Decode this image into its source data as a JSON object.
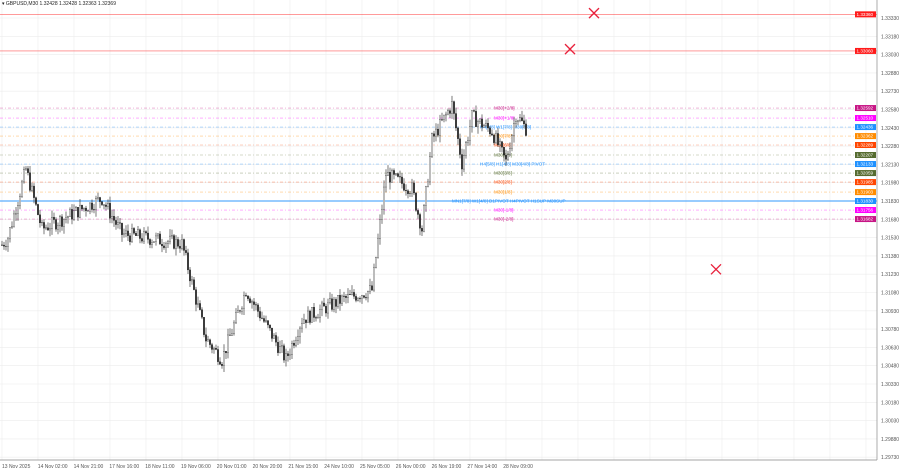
{
  "header": {
    "symbol": "GBPUSD,M30",
    "ohlc": "1.32428 1.32428 1.32363 1.32369"
  },
  "price_axis": {
    "ticks": [
      "1.33330",
      "1.33180",
      "1.33030",
      "1.32880",
      "1.32730",
      "1.32580",
      "1.32430",
      "1.32280",
      "1.32130",
      "1.31980",
      "1.31830",
      "1.31680",
      "1.31530",
      "1.31380",
      "1.31230",
      "1.31080",
      "1.30930",
      "1.30780",
      "1.30630",
      "1.30480",
      "1.30330",
      "1.30180",
      "1.30030",
      "1.29880",
      "1.29730"
    ],
    "max": 1.3333,
    "step": 0.0015
  },
  "time_axis": {
    "labels": [
      "13 Nov 2025",
      "14 Nov 02:00",
      "14 Nov 21:00",
      "17 Nov 16:00",
      "18 Nov 11:00",
      "19 Nov 06:00",
      "20 Nov 01:00",
      "20 Nov 20:00",
      "21 Nov 15:00",
      "24 Nov 10:00",
      "25 Nov 05:00",
      "26 Nov 00:00",
      "26 Nov 19:00",
      "27 Nov 14:00",
      "28 Nov 09:00"
    ]
  },
  "red_lines": [
    {
      "price": 1.3336,
      "tag": "1.33360",
      "color": "#ff1a1a"
    },
    {
      "price": 1.3306,
      "tag": "1.33060",
      "color": "#ff1a1a"
    }
  ],
  "levels": [
    {
      "label": "M30[+2/8]",
      "price": 1.32592,
      "color": "#c71585"
    },
    {
      "label": "M30[+1/8]",
      "price": 1.3251,
      "color": "#ff00ff"
    },
    {
      "label": "H4[8/8] W1[7/8] M30[8/8]",
      "price": 1.32436,
      "color": "#1e90ff"
    },
    {
      "label": "M30[7/8]",
      "price": 1.32362,
      "color": "#ff8c00"
    },
    {
      "label": "M30[6/8]",
      "price": 1.32289,
      "color": "#ff4500"
    },
    {
      "label": "M30[5/8]",
      "price": 1.32207,
      "color": "#556b2f"
    },
    {
      "label": "H4[5/8] H1[4/8] M30[4/8] PIVOT",
      "price": 1.32133,
      "color": "#1e90ff"
    },
    {
      "label": "M30[3/8]",
      "price": 1.32059,
      "color": "#556b2f"
    },
    {
      "label": "M30[2/8]",
      "price": 1.31985,
      "color": "#ff4500"
    },
    {
      "label": "M30[1/8]",
      "price": 1.31903,
      "color": "#ff8c00"
    },
    {
      "label": "MN1[7/8] W1[4/8] D1PIVOT H4PIVOT H1SUP M30SUP",
      "price": 1.3183,
      "color": "#1e90ff",
      "solid": true
    },
    {
      "label": "M30[-1/8]",
      "price": 1.31756,
      "color": "#ff00ff"
    },
    {
      "label": "M30[-2/8]",
      "price": 1.31682,
      "color": "#c71585"
    }
  ],
  "markers": [
    {
      "type": "x",
      "price": 1.3337,
      "bar": 296,
      "color": "#e8213c"
    },
    {
      "type": "x",
      "price": 1.33075,
      "bar": 284,
      "color": "#e8213c"
    },
    {
      "type": "x",
      "price": 1.3127,
      "bar": 357,
      "color": "#e8213c"
    }
  ],
  "close_path": [
    [
      0,
      1.3147
    ],
    [
      3,
      1.3153
    ],
    [
      12,
      1.3209
    ],
    [
      20,
      1.316
    ],
    [
      30,
      1.3168
    ],
    [
      50,
      1.3185
    ],
    [
      60,
      1.3156
    ],
    [
      90,
      1.3148
    ],
    [
      102,
      1.307
    ],
    [
      110,
      1.3053
    ],
    [
      122,
      1.311
    ],
    [
      142,
      1.3053
    ],
    [
      150,
      1.3086
    ],
    [
      170,
      1.3102
    ],
    [
      185,
      1.311
    ],
    [
      192,
      1.3205
    ],
    [
      205,
      1.3193
    ],
    [
      210,
      1.316
    ],
    [
      215,
      1.3233
    ],
    [
      225,
      1.3262
    ],
    [
      230,
      1.3214
    ],
    [
      235,
      1.3252
    ],
    [
      245,
      1.324
    ],
    [
      252,
      1.3215
    ],
    [
      257,
      1.3254
    ],
    [
      263,
      1.324
    ]
  ]
}
